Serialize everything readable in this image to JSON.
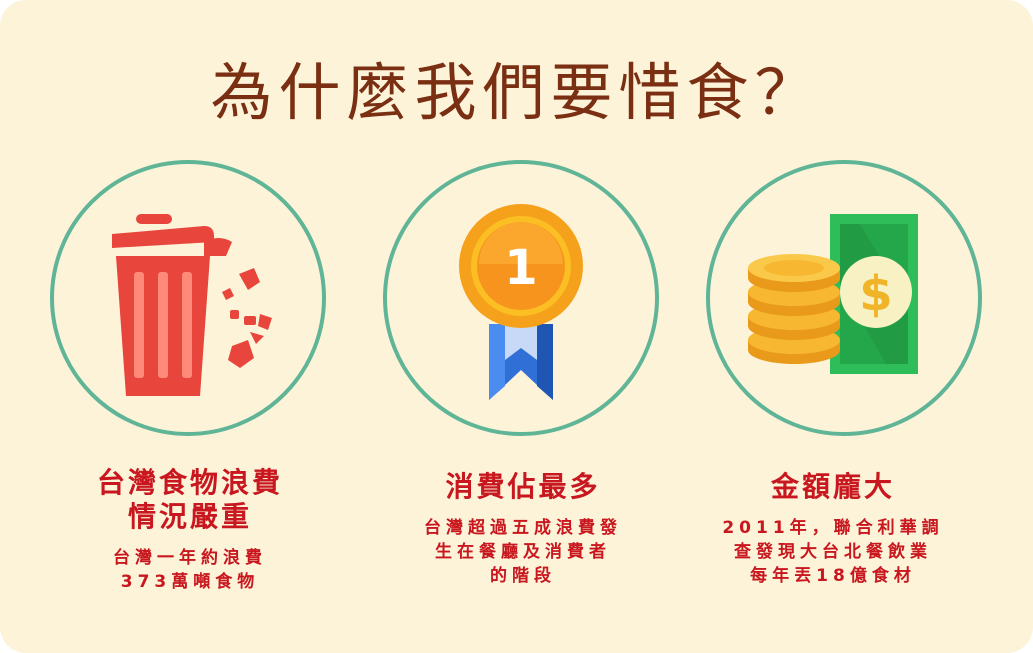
{
  "title": "為什麼我們要惜食？",
  "colors": {
    "background": "#fdf3d9",
    "title": "#7a2e12",
    "accent_red": "#c8171e",
    "circle_border": "#5fb596"
  },
  "items": [
    {
      "icon": "trash-can-icon",
      "heading_line1": "台灣食物浪費",
      "heading_line2": "情況嚴重",
      "desc": "台灣一年約浪費\n373萬噸食物"
    },
    {
      "icon": "medal-icon",
      "medal_number": "1",
      "heading_line1": "消費佔最多",
      "desc": "台灣超過五成浪費發\n生在餐廳及消費者\n的階段"
    },
    {
      "icon": "money-coins-icon",
      "heading_line1": "金額龐大",
      "desc": "2011年，聯合利華調\n查發現大台北餐飲業\n每年丟18億食材"
    }
  ]
}
